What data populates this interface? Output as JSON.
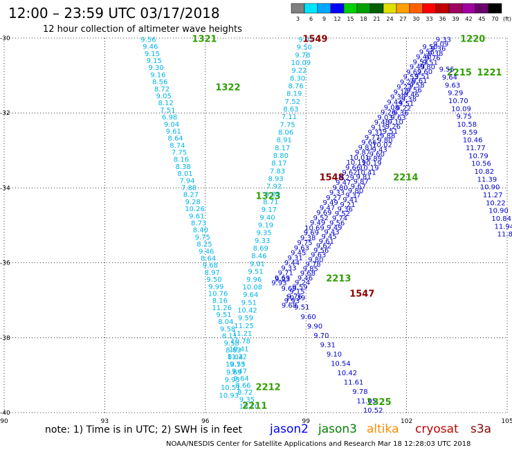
{
  "title": "12:00 – 23:59 UTC 03/17/2018",
  "subtitle": "12 hour collection of altimeter wave heights",
  "legend_scale": {
    "values": [
      "3",
      "6",
      "9",
      "12",
      "15",
      "18",
      "21",
      "24",
      "27",
      "30",
      "33",
      "36",
      "39",
      "42",
      "45",
      "70"
    ],
    "unit": "(ft)",
    "colors": [
      "#7f7f7f",
      "#00e5ff",
      "#00a8ff",
      "#0000ff",
      "#00d000",
      "#00a000",
      "#006000",
      "#e0e000",
      "#ffa000",
      "#ff6000",
      "#ff0000",
      "#c00000",
      "#a00060",
      "#a000a0",
      "#6a006a",
      "#000000"
    ]
  },
  "note": "note:  1) Time is in UTC;  2) SWH is in feet",
  "satellites": [
    {
      "name": "jason2",
      "color": "#0000ff"
    },
    {
      "name": "jason3",
      "color": "#008000"
    },
    {
      "name": "altika",
      "color": "#ff8c00"
    },
    {
      "name": "cryosat",
      "color": "#c00000"
    },
    {
      "name": "s3a",
      "color": "#8b0000"
    }
  ],
  "footer": "NOAA/NESDIS Center for Satellite Applications and Research    Mar 18 12:28:03 UTC 2018",
  "chart_data": {
    "type": "scatter",
    "x_ticks": [
      "90",
      "93",
      "96",
      "99",
      "102",
      "105"
    ],
    "y_ticks": [
      "-30",
      "-32",
      "-34",
      "-36",
      "-38",
      "-40"
    ],
    "xlim": [
      90,
      105
    ],
    "ylim": [
      -40,
      -30
    ],
    "grid": true,
    "tracks": [
      {
        "id": "1321-2211",
        "color": "#00b4e6",
        "start": [
          94.3,
          -30.1
        ],
        "end": [
          97.3,
          -39.9
        ],
        "labels": [
          "1321",
          "1322",
          "1323",
          "2211"
        ],
        "label_positions": [
          [
            95.6,
            -30.1
          ],
          [
            96.3,
            -31.4
          ],
          [
            97.5,
            -34.3
          ],
          [
            97.1,
            -39.9
          ]
        ],
        "values": [
          "9.56",
          "9.46",
          "9.15",
          "9.15",
          "9.30",
          "9.16",
          "8.56",
          "8.72",
          "9.05",
          "8.12",
          "7.51",
          "6.98",
          "9.04",
          "9.61",
          "8.64",
          "8.74",
          "7.75",
          "8.16",
          "8.38",
          "8.01",
          "7.94",
          "7.88",
          "8.27",
          "9.28",
          "10.26",
          "9.61",
          "8.73",
          "8.40",
          "9.75",
          "8.25",
          "9.46",
          "8.64",
          "9.68",
          "8.97",
          "9.50",
          "9.99",
          "10.76",
          "8.16",
          "11.26",
          "9.51",
          "8.04",
          "9.58",
          "8.11",
          "9.58",
          "8.83",
          "8.04",
          "9.73",
          "9.47",
          "9.64",
          "8.66",
          "8.72",
          "9.35",
          "10.10"
        ]
      },
      {
        "id": "1549-2212",
        "color": "#00b4e6",
        "start": [
          99.0,
          -30.1
        ],
        "end": [
          96.7,
          -39.6
        ],
        "labels": [
          "1549",
          "1548",
          "2212"
        ],
        "label_positions": [
          [
            98.9,
            -30.1
          ],
          [
            99.4,
            -33.8
          ],
          [
            97.5,
            -39.4
          ]
        ],
        "values": [
          "9.01",
          "9.50",
          "9.78",
          "10.09",
          "9.22",
          "8.30",
          "8.76",
          "8.19",
          "7.52",
          "8.63",
          "7.11",
          "7.75",
          "8.06",
          "8.91",
          "8.17",
          "8.80",
          "8.17",
          "7.83",
          "8.93",
          "7.92",
          "9.05",
          "8.71",
          "9.17",
          "9.40",
          "9.19",
          "9.35",
          "9.33",
          "8.69",
          "8.46",
          "9.01",
          "9.51",
          "9.96",
          "10.08",
          "9.64",
          "9.51",
          "10.42",
          "9.59",
          "11.25",
          "11.21",
          "10.78",
          "10.41",
          "11.22",
          "10.55",
          "9.89",
          "9.93",
          "10.51",
          "10.93"
        ]
      },
      {
        "id": "1547-1325",
        "color": "#0000cc",
        "start": [
          98.3,
          -36.5
        ],
        "end": [
          101.0,
          -40.0
        ],
        "labels": [
          "1547",
          "1325"
        ],
        "label_positions": [
          [
            100.3,
            -36.9
          ],
          [
            100.8,
            -39.8
          ]
        ],
        "values": [
          "9.23",
          "9.69",
          "10.39",
          "9.51",
          "9.60",
          "9.90",
          "9.70",
          "9.31",
          "9.10",
          "10.54",
          "10.42",
          "11.61",
          "9.78",
          "11.05",
          "10.52"
        ]
      },
      {
        "id": "2214-1220",
        "color": "#0000cc",
        "start": [
          98.5,
          -37.2
        ],
        "end": [
          103.1,
          -30.1
        ],
        "labels": [
          "2213",
          "2214",
          "2215",
          "1220",
          "1221"
        ],
        "label_positions": [
          [
            99.6,
            -36.5
          ],
          [
            101.6,
            -33.8
          ],
          [
            103.2,
            -31.0
          ],
          [
            103.6,
            -30.1
          ],
          [
            104.1,
            -31.0
          ]
        ],
        "values": [
          "9.68",
          "9.93",
          "9.76",
          "9.15",
          "9.59",
          "9.24",
          "9.46",
          "9.68",
          "9.85",
          "9.78",
          "9.80",
          "9.63",
          "9.56",
          "9.62",
          "9.61",
          "9.45",
          "9.43",
          "9.49",
          "9.56",
          "9.74",
          "9.52",
          "9.36",
          "9.21",
          "9.41",
          "9.37",
          "9.80",
          "9.67",
          "9.87",
          "9.81",
          "10.41",
          "10.19",
          "10.19",
          "9.89",
          "9.60",
          "9.43",
          "10.02",
          "9.80",
          "9.88",
          "9.51",
          "9.26",
          "9.10",
          "9.63",
          "9.36",
          "9.22",
          "9.51",
          "9.38",
          "9.46",
          "9.56",
          "9.58",
          "9.61",
          "9.51",
          "9.60",
          "9.80",
          "9.51",
          "9.76",
          "9.38",
          "9.36",
          "9.09",
          "9.33"
        ]
      },
      {
        "id": "2214b",
        "color": "#0000cc",
        "start": [
          98.2,
          -36.6
        ],
        "end": [
          102.7,
          -30.3
        ],
        "labels": [],
        "label_positions": [],
        "values": [
          "9.93",
          "9.69",
          "9.71",
          "9.33",
          "9.44",
          "9.31",
          "9.45",
          "9.63",
          "9.75",
          "9.38",
          "9.69",
          "10.69",
          "9.49",
          "9.52",
          "9.69",
          "9.47",
          "9.49",
          "9.27",
          "9.33",
          "9.80",
          "9.47",
          "9.29",
          "9.62",
          "9.66",
          "10.19",
          "10.01",
          "9.87",
          "9.81",
          "9.66",
          "9.77",
          "9.31",
          "9.15",
          "9.48",
          "9.03",
          "9.26",
          "9.08",
          "9.44",
          "9.30",
          "9.10",
          "9.23",
          "9.26",
          "9.53",
          "9.62",
          "9.49",
          "9.53",
          "9.40",
          "9.56",
          "9.50"
        ]
      },
      {
        "id": "1221-1322",
        "color": "#0000cc",
        "start": [
          103.2,
          -30.9
        ],
        "end": [
          105.0,
          -35.3
        ],
        "labels": [
          "1322"
        ],
        "label_positions": [
          [
            105.2,
            -33.7
          ]
        ],
        "values": [
          "9.55",
          "9.64",
          "9.63",
          "9.29",
          "10.70",
          "10.09",
          "9.75",
          "10.58",
          "9.59",
          "10.46",
          "11.77",
          "10.79",
          "10.56",
          "10.82",
          "11.39",
          "10.90",
          "11.27",
          "10.22",
          "10.90",
          "10.84",
          "11.94",
          "11.86"
        ]
      }
    ]
  }
}
